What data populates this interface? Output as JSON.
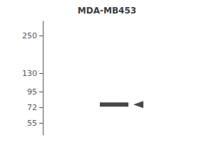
{
  "chart_data": {
    "type": "scatter",
    "title": "MDA-MB453",
    "categories": [
      null
    ],
    "values": [
      76
    ],
    "color": "#1a1a1a",
    "marker": "rect",
    "log": "y",
    "ylim": [
      45,
      320
    ],
    "yticks": [
      250,
      130,
      95,
      72,
      55
    ],
    "grid": false,
    "tick_labels": "y"
  }
}
